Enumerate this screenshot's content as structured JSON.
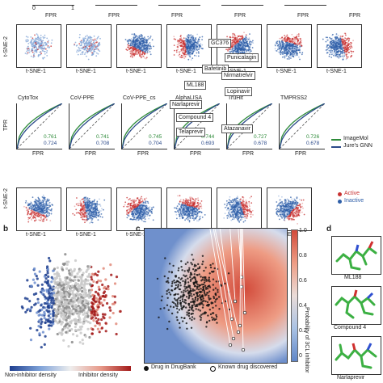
{
  "top_row": {
    "fpr_label": "FPR",
    "ticks": [
      "0",
      "1"
    ]
  },
  "tsne_row1": {
    "y_label": "t-SNE-2",
    "x_label": "t-SNE-1"
  },
  "roc_row": {
    "y_label": "TPR",
    "x_label": "FPR",
    "legend": [
      "ImageMol",
      "Jure's GNN"
    ],
    "panels": [
      {
        "title": "CytoTox",
        "imagemol": "0.761",
        "gnn": "0.724"
      },
      {
        "title": "CoV-PPE",
        "imagemol": "0.741",
        "gnn": "0.708"
      },
      {
        "title": "CoV-PPE_cs",
        "imagemol": "0.745",
        "gnn": "0.704"
      },
      {
        "title": "AlphaLISA",
        "imagemol": "0.744",
        "gnn": "0.693"
      },
      {
        "title": "TruHit",
        "imagemol": "0.727",
        "gnn": "0.678"
      },
      {
        "title": "TMPRSS2",
        "imagemol": "0.726",
        "gnn": "0.678"
      }
    ]
  },
  "tsne_row2": {
    "y_label": "t-SNE-2",
    "x_label": "t-SNE-1",
    "legend": [
      "Active",
      "Inactive"
    ],
    "colors": {
      "active": "#c83232",
      "inactive": "#2f5fa8"
    }
  },
  "panel_b": {
    "letter": "b",
    "left_label": "Non-inhibitor density",
    "right_label": "Inhibitor density"
  },
  "panel_c": {
    "letter": "c",
    "colorbar_title": "Probability of 3CL inhibitor",
    "colorbar_ticks": [
      "1.0",
      "0.8",
      "0.6",
      "0.4",
      "0.2",
      "0"
    ],
    "drugs": [
      "GC376",
      "Punicalagin",
      "Bafetinib",
      "Nirmatrelvir",
      "ML188",
      "Lopinavir",
      "Narlaprevir",
      "Compound 4",
      "Telaprevir",
      "Atazanavir"
    ],
    "legend": [
      "Drug in DrugBank",
      "Known drug discovered"
    ]
  },
  "panel_d": {
    "letter": "d",
    "molecules": [
      "ML188",
      "Compound 4",
      "Narlaprevir"
    ]
  }
}
